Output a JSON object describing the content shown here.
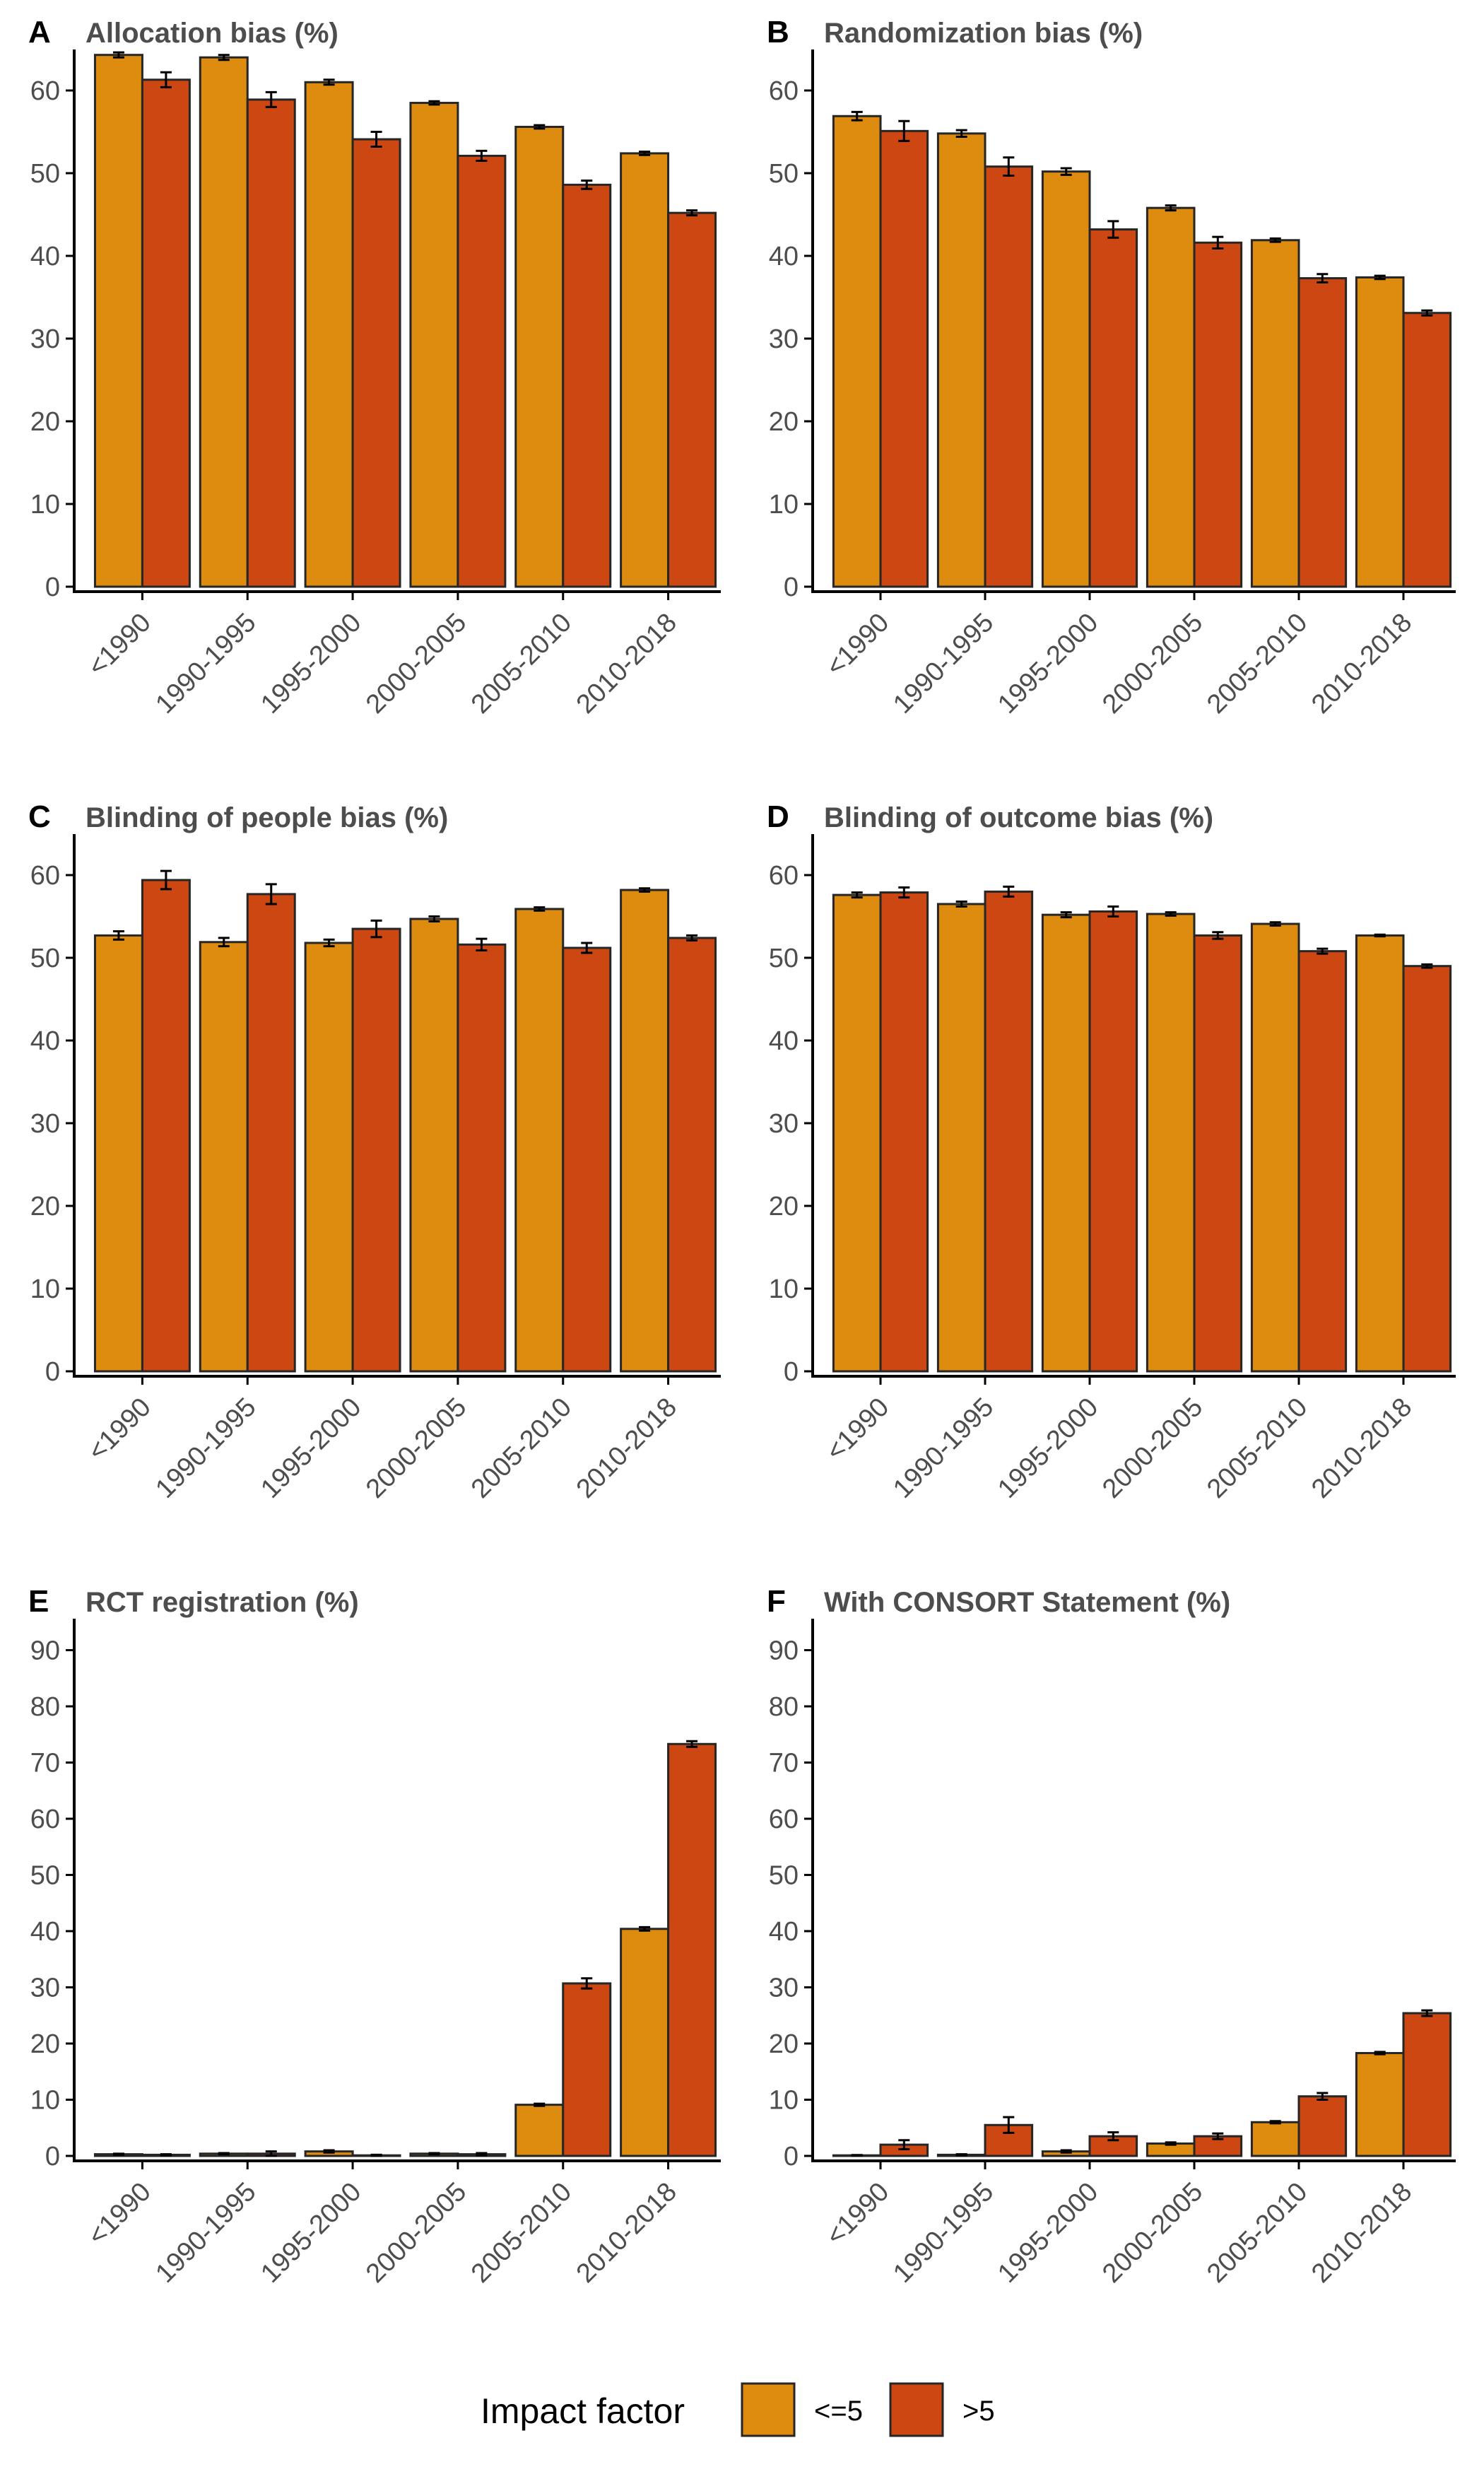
{
  "colors": {
    "le5": "#DE8C0F",
    "gt5": "#CC4711",
    "axis": "#000000",
    "outline": "#262626",
    "text": "#4d4d4d"
  },
  "legend": {
    "title": "Impact factor",
    "items": [
      {
        "key": "le5",
        "label": "<=5"
      },
      {
        "key": "gt5",
        "label": ">5"
      }
    ]
  },
  "chart_data": [
    {
      "panel": "A",
      "type": "bar",
      "title": "Allocation bias (%)",
      "xlabel": "",
      "ylabel": "",
      "ylim": [
        0,
        65
      ],
      "yticks": [
        0,
        10,
        20,
        30,
        40,
        50,
        60
      ],
      "categories": [
        "<1990",
        "1990-1995",
        "1995-2000",
        "2000-2005",
        "2005-2010",
        "2010-2018"
      ],
      "series": [
        {
          "name": "<=5",
          "color_key": "le5",
          "values": [
            64.3,
            64.0,
            61.0,
            58.5,
            55.6,
            52.4
          ],
          "errors": [
            0.3,
            0.3,
            0.3,
            0.2,
            0.2,
            0.2
          ]
        },
        {
          "name": ">5",
          "color_key": "gt5",
          "values": [
            61.3,
            58.9,
            54.1,
            52.1,
            48.6,
            45.2
          ],
          "errors": [
            0.9,
            0.9,
            0.9,
            0.6,
            0.5,
            0.3
          ]
        }
      ]
    },
    {
      "panel": "B",
      "type": "bar",
      "title": "Randomization bias (%)",
      "xlabel": "",
      "ylabel": "",
      "ylim": [
        0,
        65
      ],
      "yticks": [
        0,
        10,
        20,
        30,
        40,
        50,
        60
      ],
      "categories": [
        "<1990",
        "1990-1995",
        "1995-2000",
        "2000-2005",
        "2005-2010",
        "2010-2018"
      ],
      "series": [
        {
          "name": "<=5",
          "color_key": "le5",
          "values": [
            56.9,
            54.8,
            50.2,
            45.8,
            41.9,
            37.4
          ],
          "errors": [
            0.5,
            0.4,
            0.4,
            0.3,
            0.2,
            0.2
          ]
        },
        {
          "name": ">5",
          "color_key": "gt5",
          "values": [
            55.1,
            50.8,
            43.2,
            41.6,
            37.3,
            33.1
          ],
          "errors": [
            1.2,
            1.1,
            1.0,
            0.7,
            0.5,
            0.3
          ]
        }
      ]
    },
    {
      "panel": "C",
      "type": "bar",
      "title": "Blinding of people bias (%)",
      "xlabel": "",
      "ylabel": "",
      "ylim": [
        0,
        62
      ],
      "yticks": [
        0,
        10,
        20,
        30,
        40,
        50,
        60
      ],
      "categories": [
        "<1990",
        "1990-1995",
        "1995-2000",
        "2000-2005",
        "2005-2010",
        "2010-2018"
      ],
      "series": [
        {
          "name": "<=5",
          "color_key": "le5",
          "values": [
            52.7,
            51.9,
            51.8,
            54.7,
            55.9,
            58.2
          ],
          "errors": [
            0.5,
            0.5,
            0.4,
            0.3,
            0.2,
            0.2
          ]
        },
        {
          "name": ">5",
          "color_key": "gt5",
          "values": [
            59.4,
            57.7,
            53.5,
            51.6,
            51.2,
            52.4
          ],
          "errors": [
            1.1,
            1.2,
            1.0,
            0.7,
            0.6,
            0.3
          ]
        }
      ]
    },
    {
      "panel": "D",
      "type": "bar",
      "title": "Blinding of outcome bias (%)",
      "xlabel": "",
      "ylabel": "",
      "ylim": [
        0,
        62
      ],
      "yticks": [
        0,
        10,
        20,
        30,
        40,
        50,
        60
      ],
      "categories": [
        "<1990",
        "1990-1995",
        "1995-2000",
        "2000-2005",
        "2005-2010",
        "2010-2018"
      ],
      "series": [
        {
          "name": "<=5",
          "color_key": "le5",
          "values": [
            57.6,
            56.5,
            55.2,
            55.3,
            54.1,
            52.7
          ],
          "errors": [
            0.3,
            0.3,
            0.3,
            0.2,
            0.2,
            0.1
          ]
        },
        {
          "name": ">5",
          "color_key": "gt5",
          "values": [
            57.9,
            58.0,
            55.6,
            52.7,
            50.8,
            49.0
          ],
          "errors": [
            0.6,
            0.6,
            0.6,
            0.4,
            0.3,
            0.2
          ]
        }
      ]
    },
    {
      "panel": "E",
      "type": "bar",
      "title": "RCT registration (%)",
      "xlabel": "",
      "ylabel": "",
      "ylim": [
        0,
        92
      ],
      "yticks": [
        0,
        10,
        20,
        30,
        40,
        50,
        60,
        70,
        80,
        90
      ],
      "categories": [
        "<1990",
        "1990-1995",
        "1995-2000",
        "2000-2005",
        "2005-2010",
        "2010-2018"
      ],
      "series": [
        {
          "name": "<=5",
          "color_key": "le5",
          "values": [
            0.3,
            0.4,
            0.8,
            0.4,
            9.1,
            40.4
          ],
          "errors": [
            0.1,
            0.1,
            0.2,
            0.1,
            0.2,
            0.3
          ]
        },
        {
          "name": ">5",
          "color_key": "gt5",
          "values": [
            0.2,
            0.4,
            0.1,
            0.3,
            30.7,
            73.3
          ],
          "errors": [
            0.1,
            0.4,
            0.1,
            0.2,
            0.9,
            0.5
          ]
        }
      ]
    },
    {
      "panel": "F",
      "type": "bar",
      "title": "With CONSORT Statement (%)",
      "xlabel": "",
      "ylabel": "",
      "ylim": [
        0,
        92
      ],
      "yticks": [
        0,
        10,
        20,
        30,
        40,
        50,
        60,
        70,
        80,
        90
      ],
      "categories": [
        "<1990",
        "1990-1995",
        "1995-2000",
        "2000-2005",
        "2005-2010",
        "2010-2018"
      ],
      "series": [
        {
          "name": "<=5",
          "color_key": "le5",
          "values": [
            0.1,
            0.2,
            0.8,
            2.2,
            6.0,
            18.3
          ],
          "errors": [
            0.05,
            0.1,
            0.2,
            0.2,
            0.2,
            0.2
          ]
        },
        {
          "name": ">5",
          "color_key": "gt5",
          "values": [
            2.0,
            5.5,
            3.5,
            3.5,
            10.6,
            25.4
          ],
          "errors": [
            0.8,
            1.4,
            0.7,
            0.5,
            0.6,
            0.5
          ]
        }
      ]
    }
  ]
}
